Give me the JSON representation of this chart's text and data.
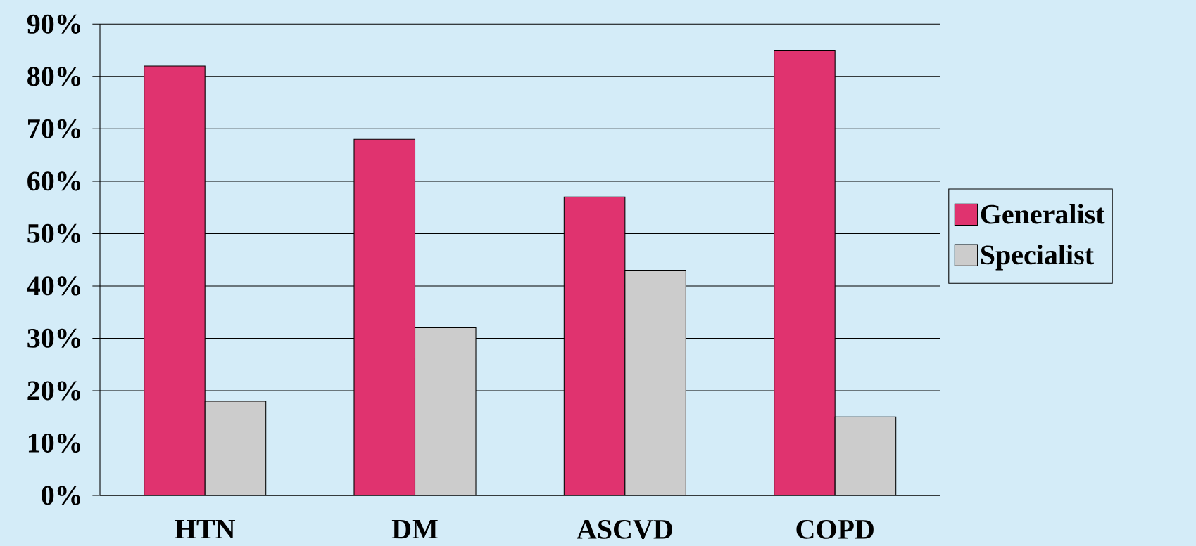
{
  "chart_data": {
    "type": "bar",
    "categories": [
      "HTN",
      "DM",
      "ASCVD",
      "COPD"
    ],
    "series": [
      {
        "name": "Generalist",
        "color": "#e0336f",
        "values": [
          82,
          68,
          57,
          85
        ]
      },
      {
        "name": "Specialist",
        "color": "#cccccc",
        "values": [
          18,
          32,
          43,
          15
        ]
      }
    ],
    "ylim": [
      0,
      90
    ],
    "yticks": [
      {
        "value": 0,
        "label": "0%"
      },
      {
        "value": 10,
        "label": "10%"
      },
      {
        "value": 20,
        "label": "20%"
      },
      {
        "value": 30,
        "label": "30%"
      },
      {
        "value": 40,
        "label": "40%"
      },
      {
        "value": 50,
        "label": "50%"
      },
      {
        "value": 60,
        "label": "60%"
      },
      {
        "value": 70,
        "label": "70%"
      },
      {
        "value": 80,
        "label": "80%"
      },
      {
        "value": 90,
        "label": "90%"
      }
    ],
    "grid": "y",
    "legend": "right"
  }
}
